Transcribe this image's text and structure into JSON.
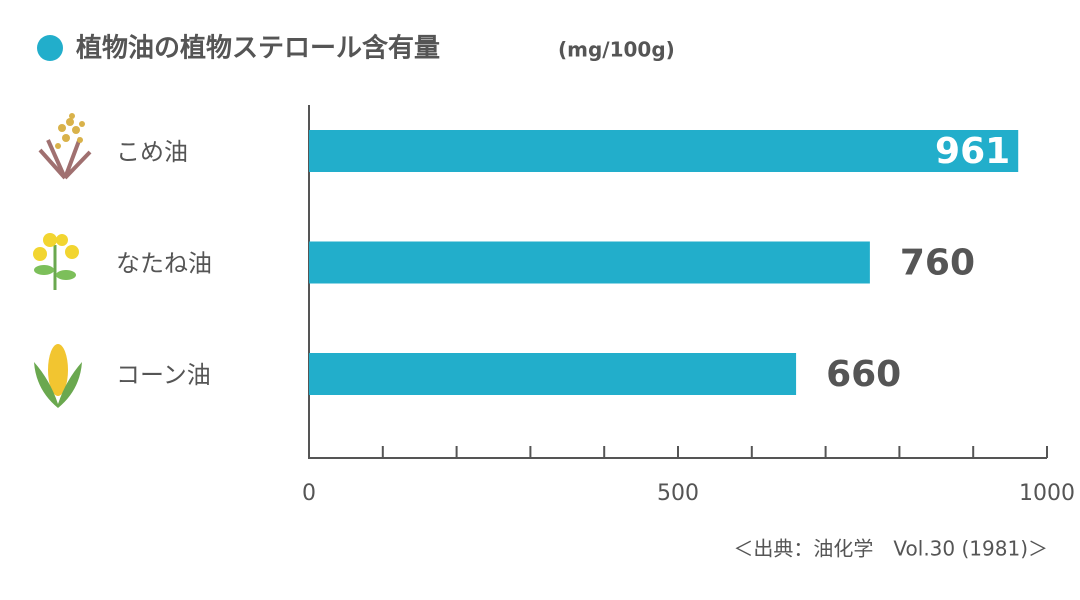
{
  "chart_data": {
    "type": "bar",
    "orientation": "horizontal",
    "title": "植物油の植物ステロール含有量",
    "unit": "(mg/100g)",
    "categories": [
      "こめ油",
      "なたね油",
      "コーン油"
    ],
    "values": [
      961,
      760,
      660
    ],
    "color": "#22aecb",
    "xlim": [
      0,
      1000
    ],
    "xticks": [
      0,
      500,
      1000
    ],
    "minor_xticks": [
      100,
      200,
      300,
      400,
      600,
      700,
      800,
      900
    ],
    "source": "＜出典：油化学　Vol.30 (1981)＞"
  }
}
